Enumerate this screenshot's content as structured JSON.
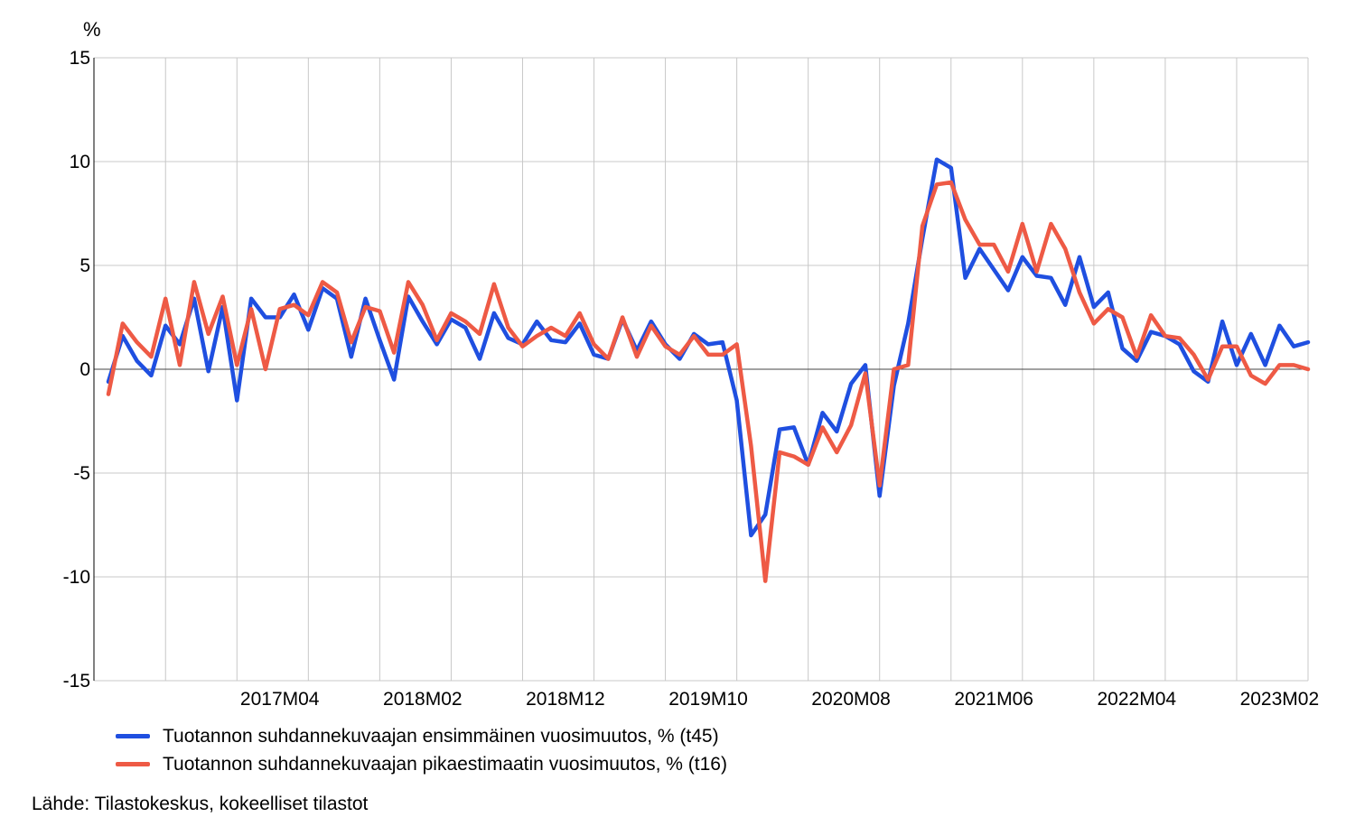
{
  "chart_data": {
    "type": "line",
    "unit_label": "%",
    "ylim": [
      -15,
      15
    ],
    "yticks": [
      15,
      10,
      5,
      0,
      -5,
      -10,
      -15
    ],
    "ytick_labels": [
      "15",
      "10",
      "5",
      "0",
      "-5",
      "-10",
      "-15"
    ],
    "x_start": "2016M04",
    "x_end": "2023M08",
    "xtick_labels": [
      "2017M04",
      "2018M02",
      "2018M12",
      "2019M10",
      "2020M08",
      "2021M06",
      "2022M04",
      "2023M02"
    ],
    "grid": true,
    "legend_position": "bottom-left",
    "series": [
      {
        "name": "Tuotannon suhdannekuvaajan ensimmäinen vuosimuutos, % (t45)",
        "color": "#1f4fe0",
        "values": [
          -0.6,
          1.6,
          0.4,
          -0.3,
          2.1,
          1.2,
          3.4,
          -0.1,
          3.0,
          -1.5,
          3.4,
          2.5,
          2.5,
          3.6,
          1.9,
          3.9,
          3.4,
          0.6,
          3.4,
          1.4,
          -0.5,
          3.5,
          2.3,
          1.2,
          2.4,
          2.0,
          0.5,
          2.7,
          1.5,
          1.2,
          2.3,
          1.4,
          1.3,
          2.2,
          0.7,
          0.5,
          2.4,
          0.9,
          2.3,
          1.2,
          0.5,
          1.7,
          1.2,
          1.3,
          -1.5,
          -8.0,
          -7.0,
          -2.9,
          -2.8,
          -4.6,
          -2.1,
          -3.0,
          -0.7,
          0.2,
          -6.1,
          -0.8,
          2.2,
          6.3,
          10.1,
          9.7,
          4.4,
          5.8,
          4.8,
          3.8,
          5.4,
          4.5,
          4.4,
          3.1,
          5.4,
          3.0,
          3.7,
          1.0,
          0.4,
          1.8,
          1.6,
          1.2,
          -0.1,
          -0.6,
          2.3,
          0.2,
          1.7,
          0.2,
          2.1,
          1.1,
          1.3
        ]
      },
      {
        "name": "Tuotannon suhdannekuvaajan pikaestimaatin vuosimuutos, % (t16)",
        "color": "#ee5a45",
        "values": [
          -1.2,
          2.2,
          1.3,
          0.6,
          3.4,
          0.2,
          4.2,
          1.7,
          3.5,
          0.2,
          2.9,
          0.0,
          2.9,
          3.1,
          2.6,
          4.2,
          3.7,
          1.3,
          3.0,
          2.8,
          0.8,
          4.2,
          3.1,
          1.4,
          2.7,
          2.3,
          1.7,
          4.1,
          2.0,
          1.1,
          1.6,
          2.0,
          1.6,
          2.7,
          1.2,
          0.5,
          2.5,
          0.6,
          2.1,
          1.1,
          0.7,
          1.6,
          0.7,
          0.7,
          1.2,
          -3.7,
          -10.2,
          -4.0,
          -4.2,
          -4.6,
          -2.8,
          -4.0,
          -2.7,
          -0.2,
          -5.6,
          0.0,
          0.2,
          6.9,
          8.9,
          9.0,
          7.2,
          6.0,
          6.0,
          4.7,
          7.0,
          4.7,
          7.0,
          5.8,
          3.7,
          2.2,
          2.9,
          2.5,
          0.6,
          2.6,
          1.6,
          1.5,
          0.7,
          -0.5,
          1.1,
          1.1,
          -0.3,
          -0.7,
          0.2,
          0.2,
          0.0
        ]
      }
    ]
  },
  "footer": {
    "source": "Lähde: Tilastokeskus, kokeelliset tilastot"
  }
}
